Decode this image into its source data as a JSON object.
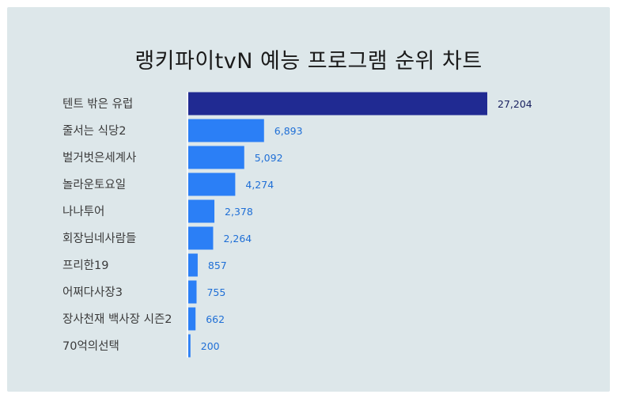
{
  "title": "랭키파이tvN 예능 프로그램 순위 차트",
  "colors": {
    "top_bar": "#202a92",
    "bar": "#2b7ff6",
    "top_label": "#1a2260",
    "label": "#1f6fd6",
    "background": "#dde7ea",
    "axis": "#ffffff"
  },
  "chart_data": {
    "type": "bar",
    "orientation": "horizontal",
    "title": "랭키파이tvN 예능 프로그램 순위 차트",
    "categories": [
      "텐트 밖은 유럽",
      "줄서는 식당2",
      "벌거벗은세계사",
      "놀라운토요일",
      "나나투어",
      "회장님네사람들",
      "프리한19",
      "어쩌다사장3",
      "장사천재 백사장 시즌2",
      "70억의선택"
    ],
    "values": [
      27204,
      6893,
      5092,
      4274,
      2378,
      2264,
      857,
      755,
      662,
      200
    ],
    "value_labels": [
      "27,204",
      "6,893",
      "5,092",
      "4,274",
      "2,378",
      "2,264",
      "857",
      "755",
      "662",
      "200"
    ],
    "grid": false,
    "legend": "none"
  }
}
